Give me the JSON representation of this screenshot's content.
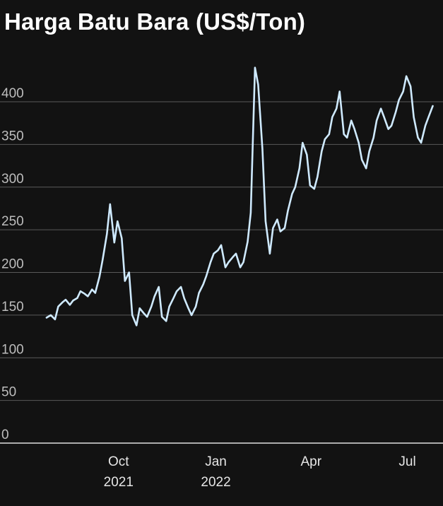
{
  "chart_data": {
    "type": "line",
    "title": "Harga Batu Bara (US$/Ton)",
    "xlabel": "",
    "ylabel": "",
    "ylim": [
      0,
      450
    ],
    "grid": true,
    "yticks": [
      0,
      50,
      100,
      150,
      200,
      250,
      300,
      350,
      400
    ],
    "ytick_labels": [
      "0",
      "50",
      "100",
      "150",
      "200",
      "250",
      "300",
      "350",
      "400"
    ],
    "xticks": [
      {
        "date": "2021-10-01",
        "label1": "Oct",
        "label2": "2021"
      },
      {
        "date": "2022-01-01",
        "label1": "Jan",
        "label2": "2022"
      },
      {
        "date": "2022-04-01",
        "label1": "Apr",
        "label2": ""
      },
      {
        "date": "2022-07-01",
        "label1": "Jul",
        "label2": ""
      }
    ],
    "xlim": [
      "2021-07-01",
      "2022-07-30"
    ],
    "series": [
      {
        "name": "",
        "color": "#cfeaff",
        "x": [
          "2021-07-25",
          "2021-07-29",
          "2021-08-02",
          "2021-08-05",
          "2021-08-09",
          "2021-08-12",
          "2021-08-16",
          "2021-08-19",
          "2021-08-23",
          "2021-08-26",
          "2021-08-30",
          "2021-09-02",
          "2021-09-06",
          "2021-09-09",
          "2021-09-13",
          "2021-09-16",
          "2021-09-20",
          "2021-09-23",
          "2021-09-27",
          "2021-09-30",
          "2021-10-04",
          "2021-10-07",
          "2021-10-11",
          "2021-10-14",
          "2021-10-18",
          "2021-10-21",
          "2021-10-25",
          "2021-10-28",
          "2021-11-01",
          "2021-11-04",
          "2021-11-08",
          "2021-11-11",
          "2021-11-15",
          "2021-11-18",
          "2021-11-22",
          "2021-11-25",
          "2021-11-29",
          "2021-12-02",
          "2021-12-06",
          "2021-12-09",
          "2021-12-13",
          "2021-12-16",
          "2021-12-20",
          "2021-12-23",
          "2021-12-27",
          "2021-12-30",
          "2022-01-03",
          "2022-01-06",
          "2022-01-10",
          "2022-01-13",
          "2022-01-17",
          "2022-01-20",
          "2022-01-24",
          "2022-01-27",
          "2022-01-31",
          "2022-02-03",
          "2022-02-07",
          "2022-02-10",
          "2022-02-14",
          "2022-02-17",
          "2022-02-21",
          "2022-02-24",
          "2022-02-28",
          "2022-03-03",
          "2022-03-07",
          "2022-03-10",
          "2022-03-14",
          "2022-03-17",
          "2022-03-21",
          "2022-03-24",
          "2022-03-28",
          "2022-03-31",
          "2022-04-04",
          "2022-04-07",
          "2022-04-11",
          "2022-04-14",
          "2022-04-18",
          "2022-04-21",
          "2022-04-25",
          "2022-04-28",
          "2022-05-02",
          "2022-05-05",
          "2022-05-09",
          "2022-05-12",
          "2022-05-16",
          "2022-05-19",
          "2022-05-23",
          "2022-05-26",
          "2022-05-30",
          "2022-06-02",
          "2022-06-06",
          "2022-06-09",
          "2022-06-13",
          "2022-06-16",
          "2022-06-20",
          "2022-06-23",
          "2022-06-27",
          "2022-06-30",
          "2022-07-04",
          "2022-07-07",
          "2022-07-11",
          "2022-07-14",
          "2022-07-18",
          "2022-07-21",
          "2022-07-25"
        ],
        "values": [
          147,
          150,
          145,
          160,
          165,
          168,
          162,
          167,
          170,
          178,
          175,
          172,
          180,
          176,
          195,
          215,
          245,
          280,
          235,
          260,
          240,
          190,
          200,
          150,
          138,
          158,
          152,
          148,
          160,
          172,
          183,
          148,
          143,
          160,
          170,
          178,
          183,
          170,
          158,
          150,
          160,
          176,
          186,
          196,
          212,
          222,
          226,
          232,
          206,
          212,
          218,
          222,
          206,
          212,
          236,
          270,
          440,
          420,
          345,
          260,
          222,
          252,
          262,
          248,
          252,
          272,
          292,
          300,
          322,
          352,
          338,
          302,
          298,
          312,
          342,
          356,
          362,
          382,
          392,
          412,
          362,
          358,
          378,
          368,
          352,
          332,
          322,
          342,
          358,
          378,
          392,
          382,
          368,
          372,
          388,
          402,
          412,
          430,
          418,
          382,
          358,
          352,
          372,
          382,
          395
        ]
      }
    ]
  }
}
